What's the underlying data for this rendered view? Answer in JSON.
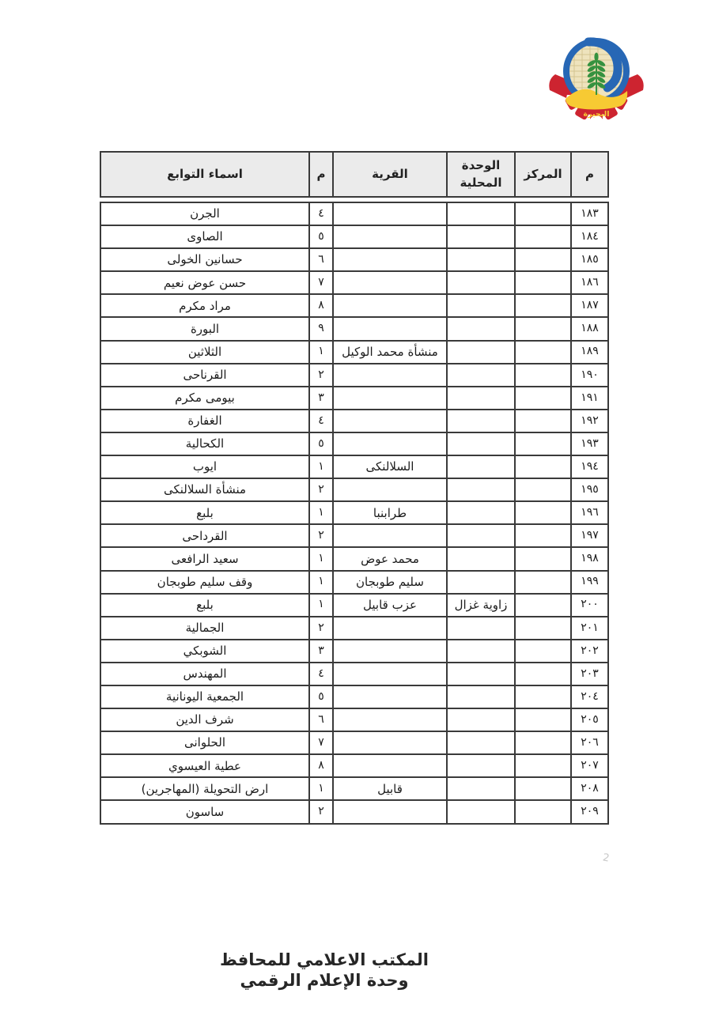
{
  "logo": {
    "label": "البحيرة",
    "colors": {
      "blue": "#2767b5",
      "red": "#cd2430",
      "yellow": "#f7ca33",
      "green": "#35923f",
      "beige": "#eee3bd"
    }
  },
  "table": {
    "columns": [
      {
        "key": "serial",
        "label": "م"
      },
      {
        "key": "markaz",
        "label": "المركز"
      },
      {
        "key": "wehda",
        "label": "الوحدة المحلية"
      },
      {
        "key": "qarya",
        "label": "القرية"
      },
      {
        "key": "num",
        "label": "م"
      },
      {
        "key": "tawabe3",
        "label": "اسماء التوابع"
      }
    ],
    "rows": [
      {
        "serial": "١٨٣",
        "markaz": "",
        "wehda": "",
        "qarya": "",
        "num": "٤",
        "tawabe3": "الجرن"
      },
      {
        "serial": "١٨٤",
        "markaz": "",
        "wehda": "",
        "qarya": "",
        "num": "٥",
        "tawabe3": "الصاوى"
      },
      {
        "serial": "١٨٥",
        "markaz": "",
        "wehda": "",
        "qarya": "",
        "num": "٦",
        "tawabe3": "حسانين الخولى"
      },
      {
        "serial": "١٨٦",
        "markaz": "",
        "wehda": "",
        "qarya": "",
        "num": "٧",
        "tawabe3": "حسن عوض نعيم"
      },
      {
        "serial": "١٨٧",
        "markaz": "",
        "wehda": "",
        "qarya": "",
        "num": "٨",
        "tawabe3": "مراد مكرم"
      },
      {
        "serial": "١٨٨",
        "markaz": "",
        "wehda": "",
        "qarya": "",
        "num": "٩",
        "tawabe3": "البورة"
      },
      {
        "serial": "١٨٩",
        "markaz": "",
        "wehda": "",
        "qarya": "منشأة محمد الوكيل",
        "num": "١",
        "tawabe3": "الثلاثين"
      },
      {
        "serial": "١٩٠",
        "markaz": "",
        "wehda": "",
        "qarya": "",
        "num": "٢",
        "tawabe3": "القرناحى"
      },
      {
        "serial": "١٩١",
        "markaz": "",
        "wehda": "",
        "qarya": "",
        "num": "٣",
        "tawabe3": "بيومى مكرم"
      },
      {
        "serial": "١٩٢",
        "markaz": "",
        "wehda": "",
        "qarya": "",
        "num": "٤",
        "tawabe3": "الغفارة"
      },
      {
        "serial": "١٩٣",
        "markaz": "",
        "wehda": "",
        "qarya": "",
        "num": "٥",
        "tawabe3": "الكحالية"
      },
      {
        "serial": "١٩٤",
        "markaz": "",
        "wehda": "",
        "qarya": "السلالنكى",
        "num": "١",
        "tawabe3": "ايوب"
      },
      {
        "serial": "١٩٥",
        "markaz": "",
        "wehda": "",
        "qarya": "",
        "num": "٢",
        "tawabe3": "منشأة السلالنكى"
      },
      {
        "serial": "١٩٦",
        "markaz": "",
        "wehda": "",
        "qarya": "طرابنبا",
        "num": "١",
        "tawabe3": "بلبع"
      },
      {
        "serial": "١٩٧",
        "markaz": "",
        "wehda": "",
        "qarya": "",
        "num": "٢",
        "tawabe3": "القرداحى"
      },
      {
        "serial": "١٩٨",
        "markaz": "",
        "wehda": "",
        "qarya": "محمد عوض",
        "num": "١",
        "tawabe3": "سعيد الرافعى"
      },
      {
        "serial": "١٩٩",
        "markaz": "",
        "wehda": "",
        "qarya": "سليم طوبجان",
        "num": "١",
        "tawabe3": "وقف سليم طوبجان"
      },
      {
        "serial": "٢٠٠",
        "markaz": "",
        "wehda": "زاوية غزال",
        "qarya": "عزب قابيل",
        "num": "١",
        "tawabe3": "بلبع"
      },
      {
        "serial": "٢٠١",
        "markaz": "",
        "wehda": "",
        "qarya": "",
        "num": "٢",
        "tawabe3": "الجمالية"
      },
      {
        "serial": "٢٠٢",
        "markaz": "",
        "wehda": "",
        "qarya": "",
        "num": "٣",
        "tawabe3": "الشوبكي"
      },
      {
        "serial": "٢٠٣",
        "markaz": "",
        "wehda": "",
        "qarya": "",
        "num": "٤",
        "tawabe3": "المهندس"
      },
      {
        "serial": "٢٠٤",
        "markaz": "",
        "wehda": "",
        "qarya": "",
        "num": "٥",
        "tawabe3": "الجمعية اليونانية"
      },
      {
        "serial": "٢٠٥",
        "markaz": "",
        "wehda": "",
        "qarya": "",
        "num": "٦",
        "tawabe3": "شرف الدين"
      },
      {
        "serial": "٢٠٦",
        "markaz": "",
        "wehda": "",
        "qarya": "",
        "num": "٧",
        "tawabe3": "الحلوانى"
      },
      {
        "serial": "٢٠٧",
        "markaz": "",
        "wehda": "",
        "qarya": "",
        "num": "٨",
        "tawabe3": "عطية العيسوي"
      },
      {
        "serial": "٢٠٨",
        "markaz": "",
        "wehda": "",
        "qarya": "قابيل",
        "num": "١",
        "tawabe3": "ارض التحويلة (المهاجرين)"
      },
      {
        "serial": "٢٠٩",
        "markaz": "",
        "wehda": "",
        "qarya": "",
        "num": "٢",
        "tawabe3": "ساسون"
      }
    ]
  },
  "footer": {
    "line1": "المكتب الاعلامي للمحافظ",
    "line2": "وحدة الإعلام الرقمي"
  },
  "faint_mark": "2"
}
